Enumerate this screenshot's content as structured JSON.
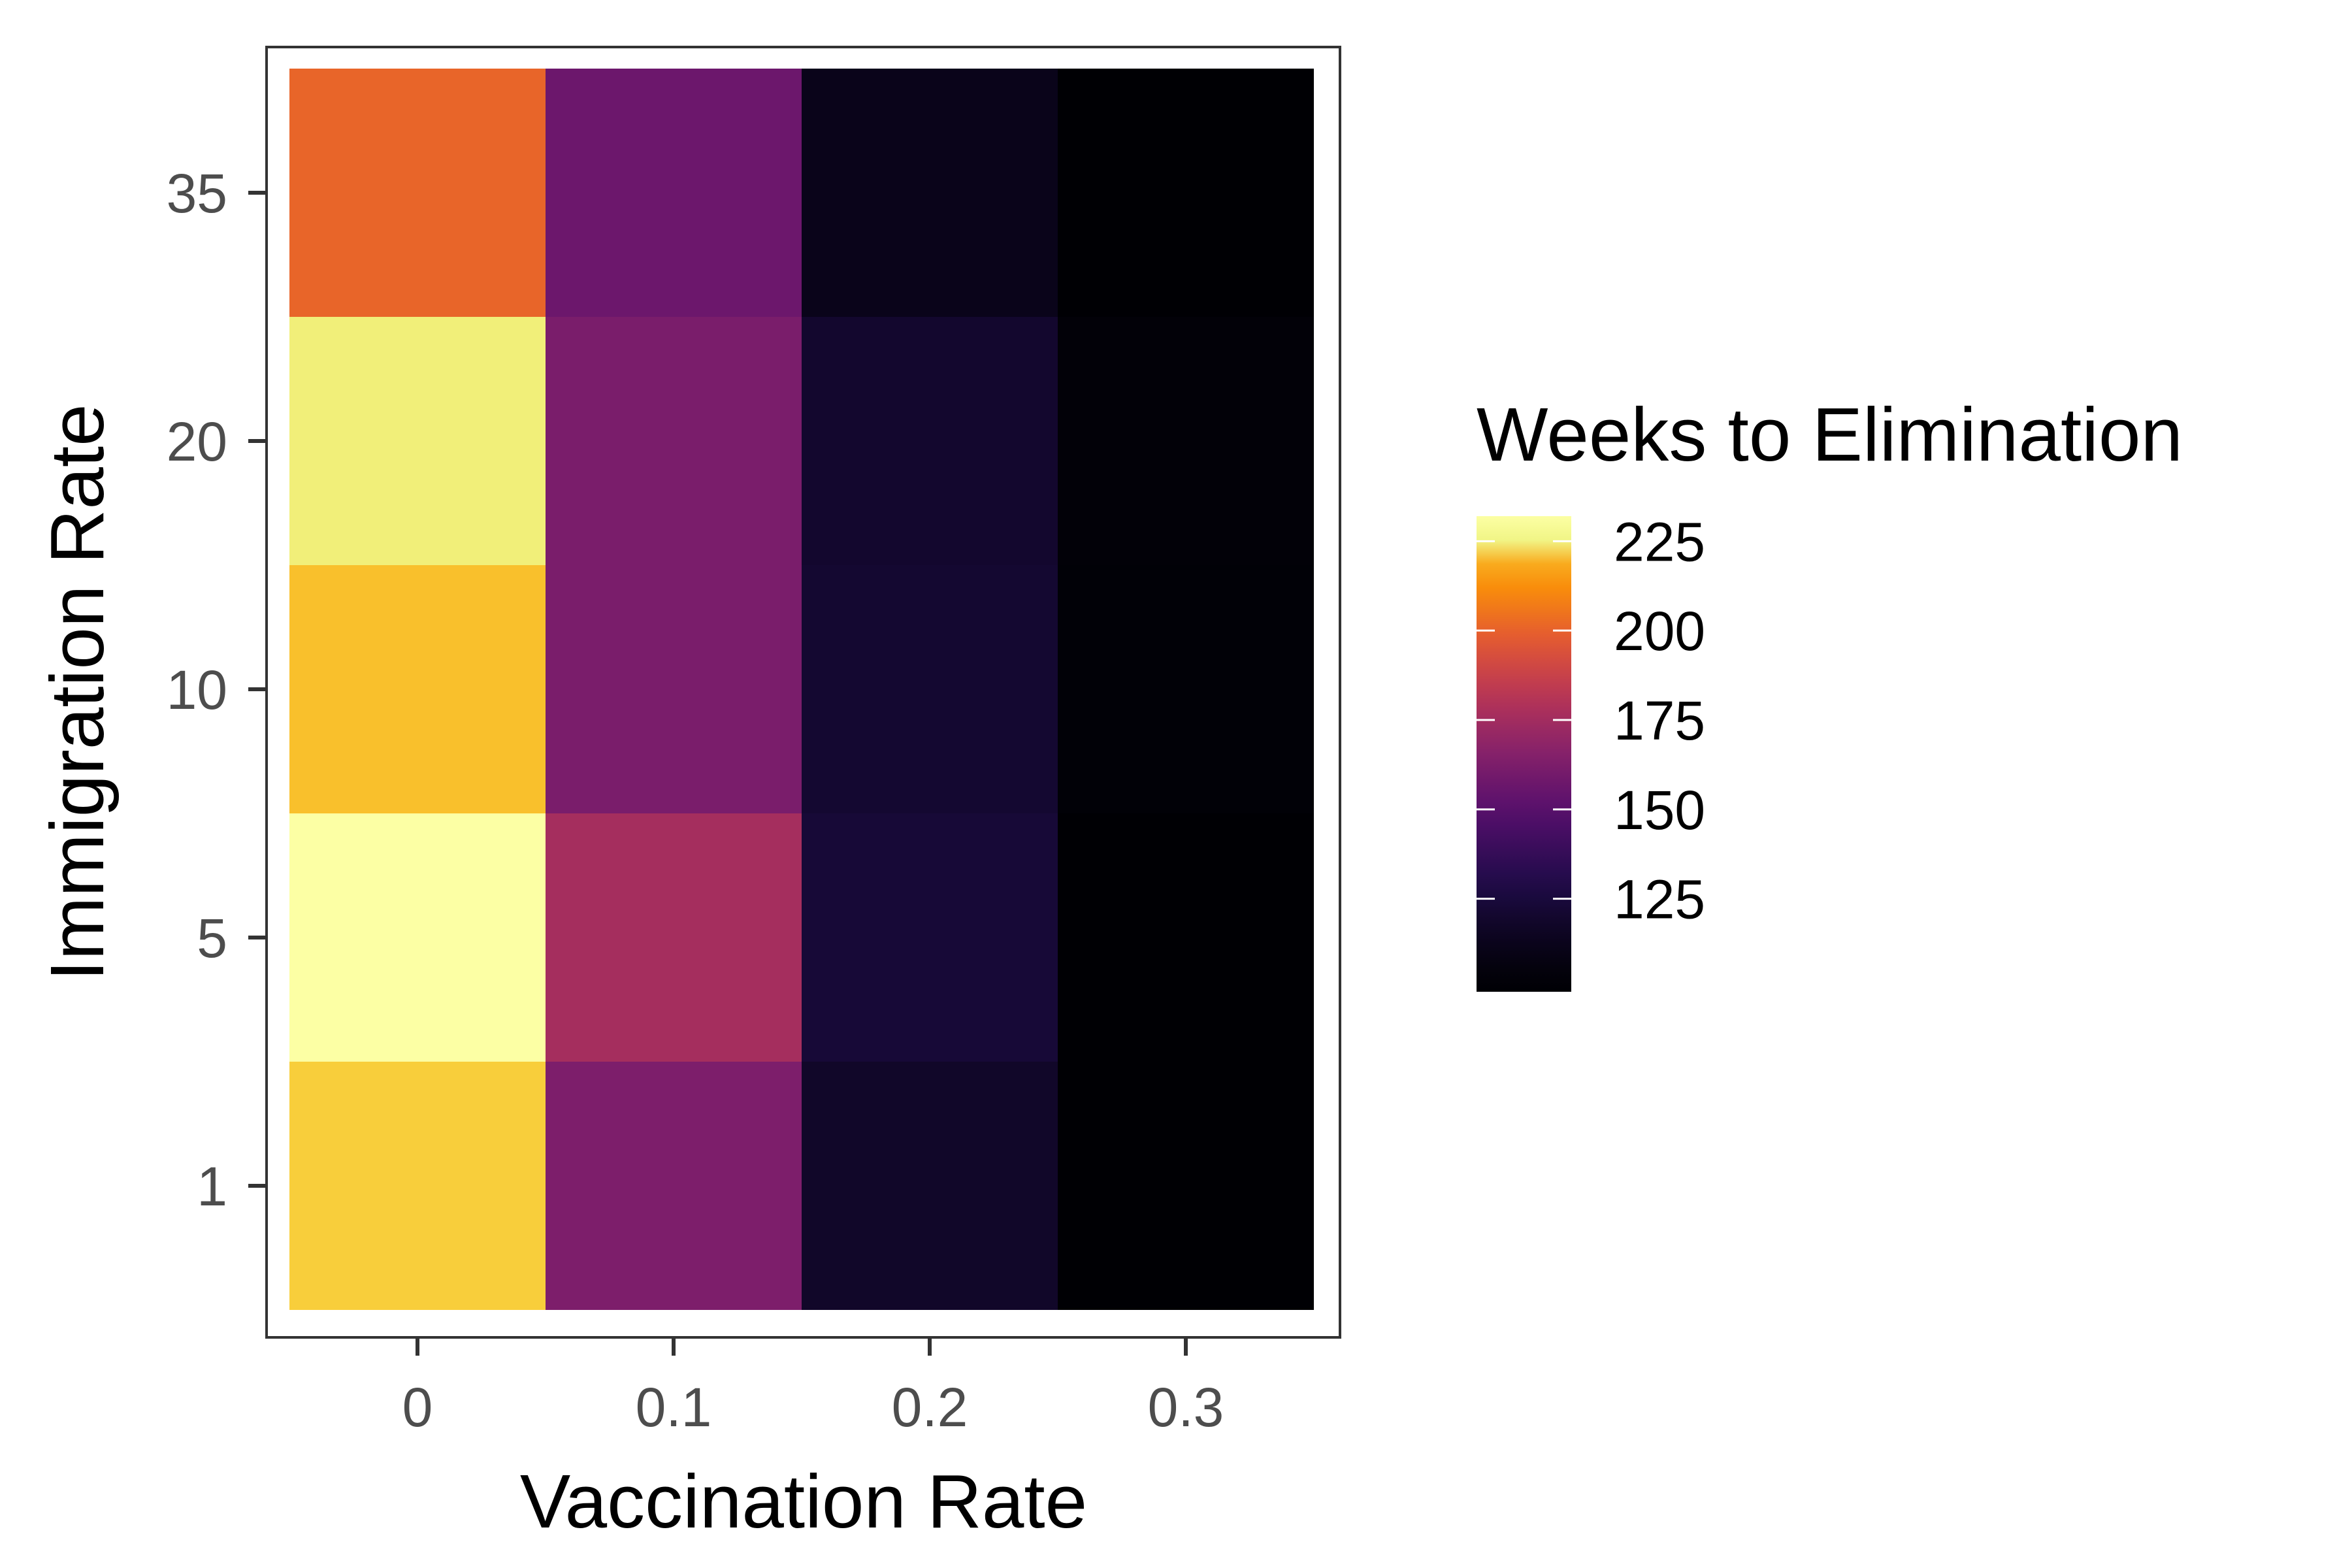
{
  "chart_data": {
    "type": "heatmap",
    "xlabel": "Vaccination Rate",
    "ylabel": "Immigration Rate",
    "x_categories": [
      "0",
      "0.1",
      "0.2",
      "0.3"
    ],
    "y_categories": [
      "1",
      "5",
      "10",
      "20",
      "35"
    ],
    "values": [
      [
        221,
        163,
        118,
        99
      ],
      [
        232,
        176,
        123,
        99
      ],
      [
        220,
        162,
        121,
        102
      ],
      [
        224,
        162,
        120,
        103
      ],
      [
        201,
        157,
        112,
        99
      ]
    ],
    "legend": {
      "title": "Weeks to Elimination",
      "breaks": [
        125,
        150,
        175,
        200,
        225
      ],
      "labels": [
        "125",
        "150",
        "175",
        "200",
        "225"
      ],
      "range": [
        99,
        232
      ],
      "position": "right"
    },
    "colormap": "inferno",
    "colors": {
      "panel_border": "#333333",
      "tick_text": "#4d4d4d",
      "title_text": "#000000"
    }
  }
}
